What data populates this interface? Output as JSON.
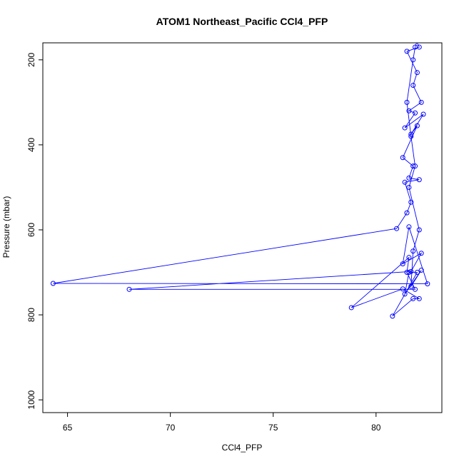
{
  "chart_data": {
    "type": "line",
    "title": "ATOM1 Northeast_Pacific CCl4_PFP",
    "xlabel": "CCl4_PFP",
    "ylabel": "Pressure (mbar)",
    "xlim": [
      63.8,
      83.2
    ],
    "ylim": [
      1030,
      160
    ],
    "y_reversed": true,
    "x_ticks": [
      65,
      70,
      75,
      80
    ],
    "y_ticks": [
      200,
      400,
      600,
      800,
      1000
    ],
    "grid": false,
    "legend": "none",
    "marker": "open-circle",
    "colors": {
      "series": "#0000ff",
      "axis": "#000000",
      "background": "#ffffff"
    },
    "series": [
      {
        "x": [
          81.9,
          82.1,
          81.5,
          82.0,
          81.8,
          82.2,
          81.6,
          81.9,
          81.4,
          82.3,
          81.7,
          82.0,
          81.3,
          81.8,
          81.6,
          82.1,
          81.4,
          81.7,
          81.5,
          81.0,
          64.3,
          82.5,
          81.6,
          81.3,
          82.2,
          81.7,
          68.0,
          81.9,
          81.5,
          81.6,
          78.8,
          81.3,
          82.1,
          81.8,
          80.8,
          82.0,
          81.6,
          81.4,
          82.2,
          81.7,
          81.8,
          82.1,
          81.6,
          81.9,
          81.7,
          81.5,
          81.8,
          81.9,
          82.0
        ],
        "y": [
          150,
          170,
          180,
          230,
          260,
          300,
          320,
          325,
          360,
          328,
          375,
          355,
          430,
          450,
          478,
          482,
          488,
          535,
          560,
          597,
          726,
          727,
          593,
          680,
          655,
          698,
          740,
          740,
          700,
          665,
          783,
          739,
          762,
          762,
          803,
          700,
          700,
          751,
          695,
          733,
          650,
          600,
          500,
          450,
          380,
          300,
          200,
          170,
          155
        ]
      }
    ]
  }
}
